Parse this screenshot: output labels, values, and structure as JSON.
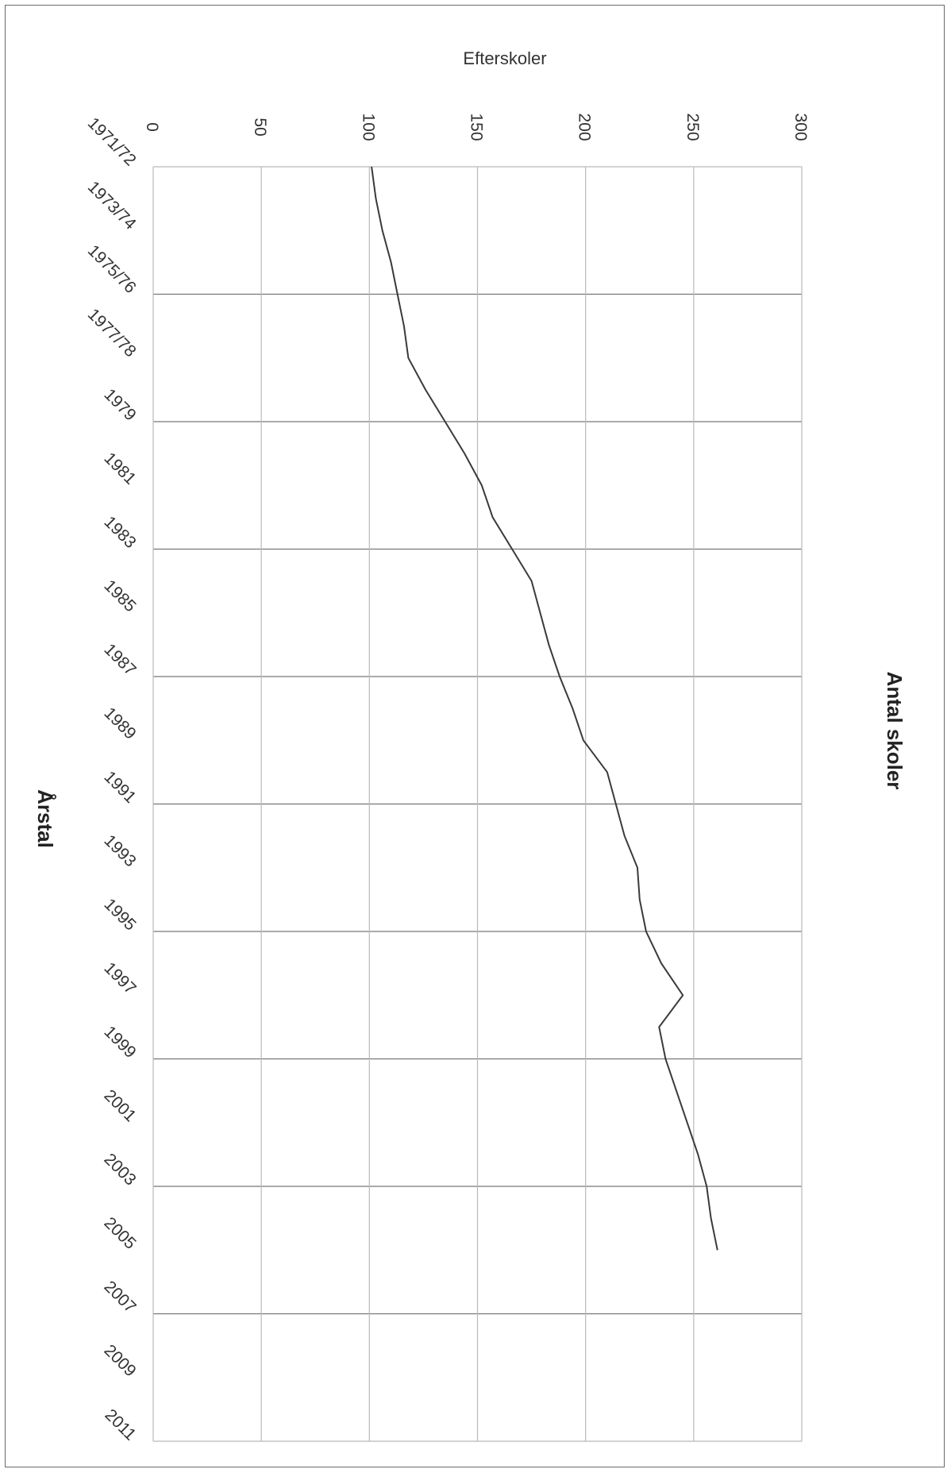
{
  "chart_data": {
    "type": "line",
    "title": "Efterskoler",
    "xlabel": "Årstal",
    "ylabel": "Antal skoler",
    "orientation": "rotated-90-clockwise",
    "ylim": [
      0,
      300
    ],
    "y_ticks": [
      "0",
      "50",
      "100",
      "150",
      "200",
      "250",
      "300"
    ],
    "x_tick_labels": [
      "1971/72",
      "1973/74",
      "1975/76",
      "1977/78",
      "1979",
      "1981",
      "1983",
      "1985",
      "1987",
      "1989",
      "1991",
      "1993",
      "1995",
      "1997",
      "1999",
      "2001",
      "2003",
      "2005",
      "2007",
      "2009",
      "2011"
    ],
    "grid": true,
    "legend": "none",
    "series": [
      {
        "color": "#3a3a3a",
        "x": [
          "1971/72",
          "1972/73",
          "1973/74",
          "1974/75",
          "1975/76",
          "1976/77",
          "1977/78",
          "1978/79",
          "1979/80",
          "1980/81",
          "1981/82",
          "1982/83",
          "1983/84",
          "1984/85",
          "1985/86",
          "1986/87",
          "1987/88",
          "1988/89",
          "1989/90",
          "1990/91",
          "1991/92",
          "1992/93",
          "1993/94",
          "1994/95",
          "1995/96",
          "1996/97",
          "1997/98",
          "1998/99",
          "1999/00",
          "2000/01",
          "2001/02",
          "2002/03",
          "2003/04",
          "2004/05",
          "2005/06"
        ],
        "values": [
          101,
          103,
          106,
          110,
          113,
          116,
          118,
          126,
          135,
          144,
          152,
          157,
          166,
          175,
          179,
          183,
          188,
          194,
          199,
          210,
          214,
          218,
          224,
          225,
          228,
          235,
          245,
          234,
          237,
          242,
          247,
          252,
          256,
          258,
          261
        ]
      }
    ]
  }
}
